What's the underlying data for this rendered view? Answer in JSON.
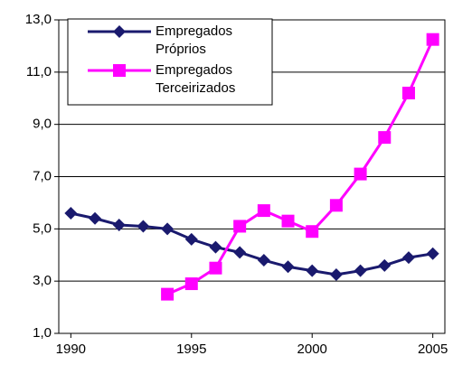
{
  "chart_data": {
    "type": "line",
    "categories": [
      "1990",
      null,
      null,
      null,
      null,
      "1995",
      null,
      null,
      null,
      null,
      "2000",
      null,
      null,
      null,
      null,
      "2005"
    ],
    "series": [
      {
        "name": "Empregados Próprios",
        "color": "#1a1a6e",
        "values": [
          5.6,
          5.4,
          5.15,
          5.1,
          5.0,
          4.6,
          4.3,
          4.1,
          3.8,
          3.55,
          3.4,
          3.25,
          3.4,
          3.6,
          3.9,
          4.05
        ]
      },
      {
        "name": "Empregados Terceirizados",
        "color": "#ff00ff",
        "values": [
          null,
          null,
          null,
          null,
          2.5,
          2.9,
          3.5,
          5.1,
          5.7,
          5.3,
          4.9,
          5.9,
          7.1,
          8.5,
          10.2,
          12.25
        ]
      }
    ],
    "ylim": [
      1,
      13
    ],
    "yticks": [
      {
        "value": 1,
        "label": "1,0"
      },
      {
        "value": 3,
        "label": "3,0"
      },
      {
        "value": 5,
        "label": "5,0"
      },
      {
        "value": 7,
        "label": "7,0"
      },
      {
        "value": 9,
        "label": "9,0"
      },
      {
        "value": 11,
        "label": "11,0"
      },
      {
        "value": 13,
        "label": "13,0"
      }
    ],
    "grid": true
  }
}
